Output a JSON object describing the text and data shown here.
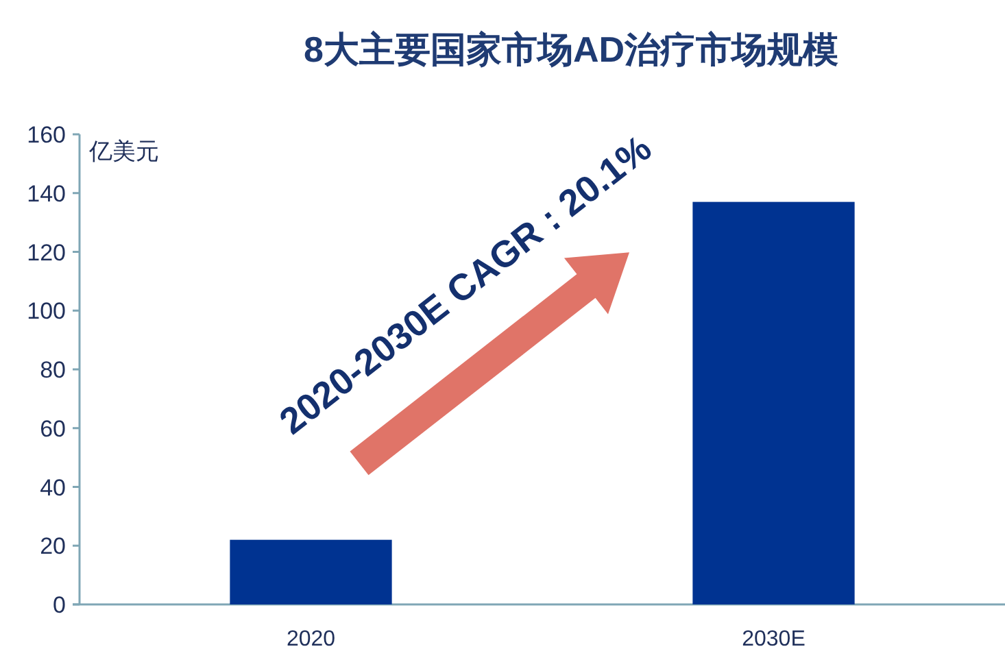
{
  "chart_data": {
    "type": "bar",
    "title": "8大主要国家市场AD治疗市场规模",
    "ylabel": "亿美元",
    "categories": [
      "2020",
      "2030E"
    ],
    "series": [
      {
        "color": "#003391",
        "values": [
          22,
          137
        ]
      }
    ],
    "ylim": [
      0,
      160
    ],
    "yticks": [
      0,
      20,
      40,
      60,
      80,
      100,
      120,
      140,
      160
    ],
    "annotations": [
      "2020-2030E CAGR : 20.1%"
    ]
  }
}
